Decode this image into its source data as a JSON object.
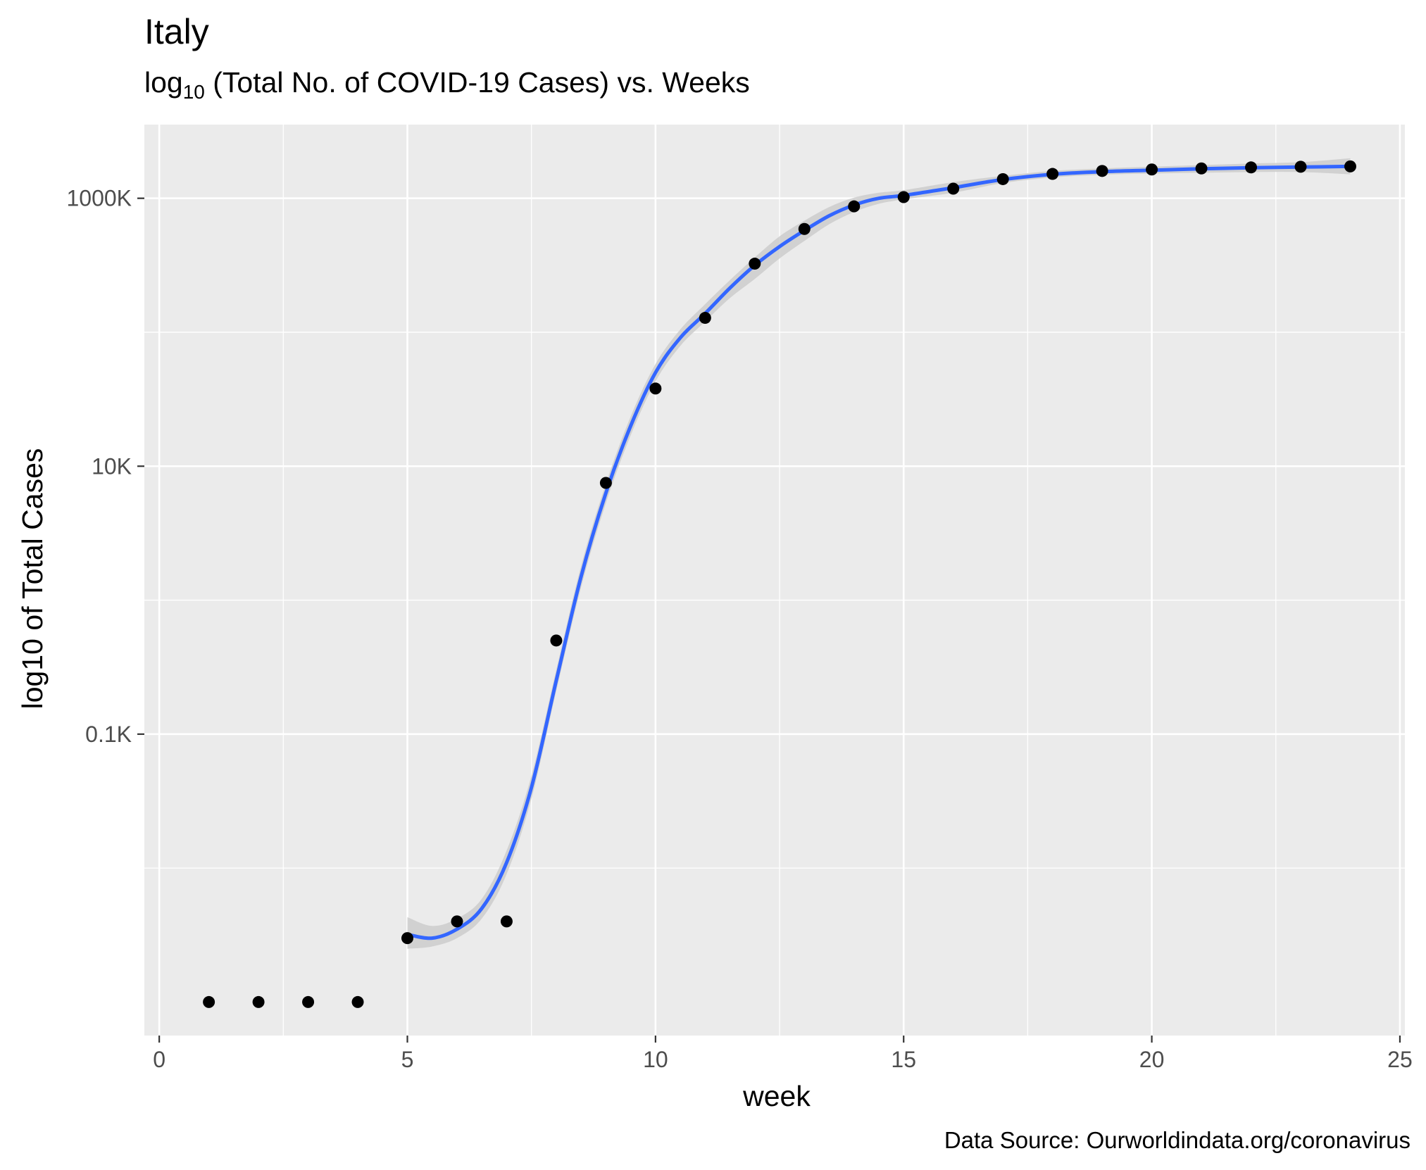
{
  "chart_data": {
    "type": "scatter",
    "title": "Italy",
    "subtitle_parts": {
      "prefix": "log",
      "subscript": "10",
      "rest": " (Total No. of COVID-19 Cases) vs. Weeks"
    },
    "xlabel": "week",
    "ylabel": "log10 of Total Cases",
    "caption": "Data Source: Ourworldindata.org/coronavirus",
    "x_scale": "linear",
    "y_scale": "log10",
    "xlim": [
      -0.3,
      25.1
    ],
    "ylim_log10": [
      -0.25,
      6.55
    ],
    "x_ticks": [
      0,
      5,
      10,
      15,
      20,
      25
    ],
    "x_tick_labels": [
      "0",
      "5",
      "10",
      "15",
      "20",
      "25"
    ],
    "y_ticks": [
      100,
      10000,
      1000000
    ],
    "y_tick_labels": [
      "0.1K",
      "10K",
      "1000K"
    ],
    "grid": true,
    "legend": "none",
    "colors": {
      "panel": "#ebebeb",
      "grid": "#ffffff",
      "point": "#000000",
      "smooth": "#3366ff",
      "ribbon": "#cccccc"
    },
    "series": [
      {
        "kind": "points",
        "x": [
          1,
          2,
          3,
          4,
          5,
          6,
          7,
          8,
          9,
          10,
          11,
          12,
          13,
          14,
          15,
          16,
          17,
          18,
          19,
          20,
          21,
          22,
          23,
          24
        ],
        "y": [
          1,
          1,
          1,
          1,
          3,
          4,
          4,
          500,
          7500,
          38000,
          128000,
          325000,
          590000,
          870000,
          1020000,
          1180000,
          1390000,
          1520000,
          1600000,
          1640000,
          1670000,
          1700000,
          1720000,
          1730000
        ]
      },
      {
        "kind": "smooth",
        "x": [
          5,
          5.5,
          6,
          6.5,
          7,
          7.5,
          8,
          8.5,
          9,
          9.5,
          10,
          10.5,
          11,
          11.5,
          12,
          12.5,
          13,
          13.5,
          14,
          14.5,
          15,
          16,
          17,
          18,
          19,
          20,
          21,
          22,
          23,
          24
        ],
        "y": [
          3.2,
          3.0,
          3.5,
          5.0,
          11,
          40,
          251,
          1500,
          6300,
          20000,
          50000,
          91000,
          138000,
          214000,
          316000,
          436000,
          575000,
          740000,
          890000,
          1000000,
          1050000,
          1200000,
          1380000,
          1510000,
          1580000,
          1620000,
          1660000,
          1690000,
          1710000,
          1730000
        ],
        "lower": [
          2.5,
          2.6,
          3.0,
          4.2,
          9,
          33,
          210,
          1250,
          5300,
          17000,
          43000,
          79000,
          120000,
          180000,
          250000,
          355000,
          480000,
          640000,
          790000,
          910000,
          980000,
          1100000,
          1300000,
          1430000,
          1500000,
          1530000,
          1550000,
          1570000,
          1570000,
          1510000
        ],
        "upper": [
          4.3,
          3.7,
          4.2,
          5.9,
          13.5,
          49,
          302,
          1800,
          7400,
          23500,
          58000,
          105000,
          162000,
          245000,
          362000,
          520000,
          680000,
          860000,
          1010000,
          1100000,
          1150000,
          1320000,
          1470000,
          1600000,
          1670000,
          1720000,
          1770000,
          1820000,
          1860000,
          1990000
        ]
      }
    ]
  }
}
